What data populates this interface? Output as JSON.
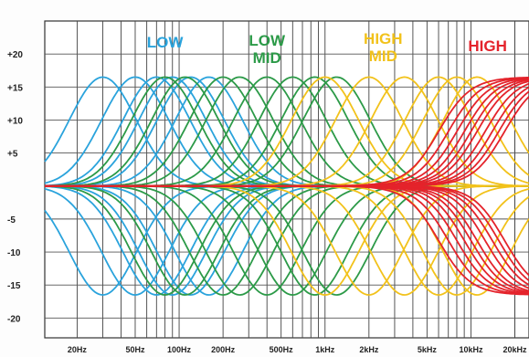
{
  "chart_data": {
    "type": "line",
    "y_ticks": [
      "+20",
      "+15",
      "+10",
      "+5",
      "-5",
      "-10",
      "-15",
      "-20"
    ],
    "y_tick_values": [
      20,
      15,
      10,
      5,
      -5,
      -10,
      -15,
      -20
    ],
    "ylim": [
      -23,
      25
    ],
    "x_scale": "log",
    "xlim": [
      12,
      25000
    ],
    "x_ticks": [
      "20Hz",
      "50Hz",
      "100Hz",
      "200Hz",
      "500Hz",
      "1kHz",
      "2kHz",
      "5kHz",
      "10kHz",
      "20kHz"
    ],
    "x_tick_values": [
      20,
      50,
      100,
      200,
      500,
      1000,
      2000,
      5000,
      10000,
      20000
    ],
    "grid": true,
    "bands": [
      {
        "name": "LOW",
        "label_lines": [
          "LOW"
        ],
        "color": "#2aa3dc",
        "center_freqs_hz": [
          30,
          50,
          70,
          90,
          120,
          160
        ],
        "gain_db": 16.5
      },
      {
        "name": "LOW MID",
        "label_lines": [
          "LOW",
          "MID"
        ],
        "color": "#2c9a48",
        "center_freqs_hz": [
          80,
          110,
          200,
          260,
          400,
          600,
          850,
          1200
        ],
        "gain_db": 16.5
      },
      {
        "name": "HIGH MID",
        "label_lines": [
          "HIGH",
          "MID"
        ],
        "color": "#f2c21b",
        "center_freqs_hz": [
          1000,
          2000,
          3500,
          6000,
          8000,
          11000
        ],
        "gain_db": 16.5
      },
      {
        "name": "HIGH",
        "label_lines": [
          "HIGH"
        ],
        "color": "#e4232b",
        "type": "shelf",
        "corner_freqs_hz": [
          6000,
          7000,
          8000,
          9000,
          10000,
          11000,
          12500,
          14000,
          15500,
          17000
        ],
        "gain_db": 16.5
      }
    ]
  }
}
